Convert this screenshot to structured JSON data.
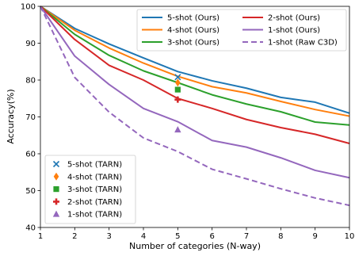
{
  "chart_data": {
    "type": "line",
    "xlabel": "Number of categories (N-way)",
    "ylabel": "Accuracy(%)",
    "xlim": [
      1,
      10
    ],
    "ylim": [
      40,
      100
    ],
    "xticks": [
      1,
      2,
      3,
      4,
      5,
      6,
      7,
      8,
      9,
      10
    ],
    "yticks": [
      40,
      50,
      60,
      70,
      80,
      90,
      100
    ],
    "grid": false,
    "x": [
      1,
      2,
      3,
      4,
      5,
      6,
      7,
      8,
      9,
      10
    ],
    "series": [
      {
        "name": "5-shot (Ours)",
        "color": "#1f77b4",
        "dash": "solid",
        "values": [
          100,
          94.0,
          89.8,
          86.0,
          82.3,
          79.8,
          77.8,
          75.3,
          74.0,
          71.0
        ]
      },
      {
        "name": "4-shot (Ours)",
        "color": "#ff7f0e",
        "dash": "solid",
        "values": [
          100,
          93.5,
          88.7,
          84.6,
          81.0,
          78.2,
          76.5,
          74.2,
          72.0,
          70.2
        ]
      },
      {
        "name": "3-shot (Ours)",
        "color": "#2ca02c",
        "dash": "solid",
        "values": [
          100,
          92.4,
          86.7,
          82.5,
          79.3,
          76.0,
          73.5,
          71.4,
          68.6,
          67.8
        ]
      },
      {
        "name": "2-shot (Ours)",
        "color": "#d62728",
        "dash": "solid",
        "values": [
          100,
          91.0,
          84.0,
          80.0,
          75.0,
          72.3,
          69.3,
          67.1,
          65.3,
          62.8
        ]
      },
      {
        "name": "1-shot (Ours)",
        "color": "#9467bd",
        "dash": "solid",
        "values": [
          100,
          86.5,
          78.8,
          72.3,
          68.7,
          63.6,
          61.8,
          58.9,
          55.5,
          53.5
        ]
      },
      {
        "name": "1-shot (Raw C3D)",
        "color": "#9467bd",
        "dash": "dashed",
        "values": [
          100,
          80.7,
          71.3,
          64.3,
          60.6,
          55.8,
          53.2,
          50.5,
          48.0,
          46.0
        ]
      }
    ],
    "markers": [
      {
        "name": "5-shot (TARN)",
        "color": "#1f77b4",
        "shape": "x",
        "x": 5,
        "y": 80.8
      },
      {
        "name": "4-shot (TARN)",
        "color": "#ff7f0e",
        "shape": "diamond",
        "x": 5,
        "y": 79.3
      },
      {
        "name": "3-shot (TARN)",
        "color": "#2ca02c",
        "shape": "square",
        "x": 5,
        "y": 77.4
      },
      {
        "name": "2-shot (TARN)",
        "color": "#d62728",
        "shape": "plus",
        "x": 5,
        "y": 74.7
      },
      {
        "name": "1-shot (TARN)",
        "color": "#9467bd",
        "shape": "triangle",
        "x": 5,
        "y": 66.5
      }
    ],
    "legends": [
      {
        "placement": "top-right",
        "columns": 2,
        "entries": [
          "5-shot (Ours)",
          "2-shot (Ours)",
          "4-shot (Ours)",
          "1-shot (Ours)",
          "3-shot (Ours)",
          "1-shot (Raw C3D)"
        ]
      },
      {
        "placement": "bottom-left",
        "columns": 1,
        "entries": [
          "5-shot (TARN)",
          "4-shot (TARN)",
          "3-shot (TARN)",
          "2-shot (TARN)",
          "1-shot (TARN)"
        ]
      }
    ]
  }
}
